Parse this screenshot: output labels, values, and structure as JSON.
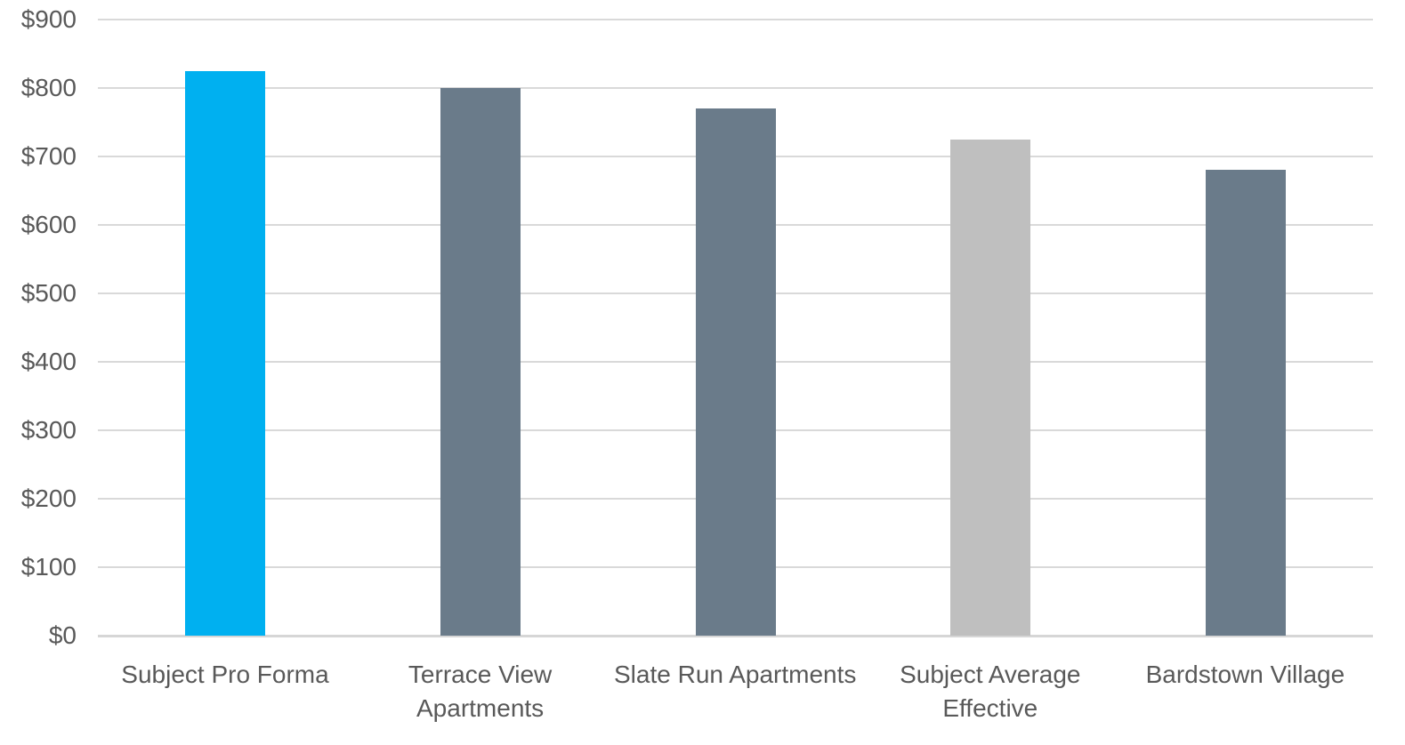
{
  "chart_data": {
    "type": "bar",
    "title": "",
    "xlabel": "",
    "ylabel": "",
    "categories": [
      "Subject Pro Forma",
      "Terrace View Apartments",
      "Slate Run Apartments",
      "Subject Average Effective",
      "Bardstown Village"
    ],
    "category_lines": [
      [
        "Subject Pro Forma"
      ],
      [
        "Terrace View",
        "Apartments"
      ],
      [
        "Slate Run Apartments"
      ],
      [
        "Subject Average",
        "Effective"
      ],
      [
        "Bardstown Village"
      ]
    ],
    "values": [
      825,
      800,
      770,
      725,
      680
    ],
    "bar_colors": [
      "#00B0F0",
      "#6A7B8A",
      "#6A7B8A",
      "#BFBFBF",
      "#6A7B8A"
    ],
    "ylim": [
      0,
      900
    ],
    "ytick_step": 100,
    "ytick_labels": [
      "$0",
      "$100",
      "$200",
      "$300",
      "$400",
      "$500",
      "$600",
      "$700",
      "$800",
      "$900"
    ],
    "grid": true,
    "legend": false,
    "colors": {
      "accent_bar": "#00B0F0",
      "default_bar": "#6A7B8A",
      "muted_bar": "#BFBFBF",
      "gridline": "#D9D9D9",
      "tick_text": "#595959",
      "background": "#FFFFFF"
    }
  }
}
